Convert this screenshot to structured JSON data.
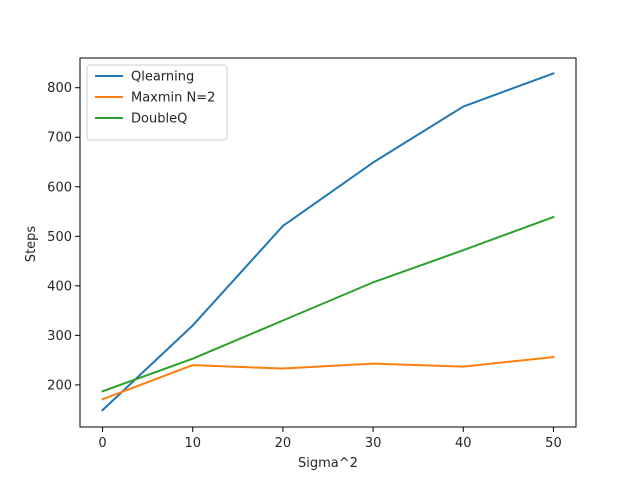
{
  "chart_data": {
    "type": "line",
    "title": "",
    "xlabel": "Sigma^2",
    "ylabel": "Steps",
    "x": [
      0,
      10,
      20,
      30,
      40,
      50
    ],
    "xlim": [
      -2.5,
      52.5
    ],
    "ylim": [
      115,
      860
    ],
    "xticks": [
      0,
      10,
      20,
      30,
      40,
      50
    ],
    "yticks": [
      200,
      300,
      400,
      500,
      600,
      700,
      800
    ],
    "grid": false,
    "legend_position": "upper-left",
    "series": [
      {
        "name": "Qlearning",
        "color": "#1f77b4",
        "values": [
          149,
          320,
          521,
          649,
          762,
          829
        ]
      },
      {
        "name": "Maxmin N=2",
        "color": "#ff7f0e",
        "values": [
          171,
          240,
          233,
          243,
          237,
          256
        ]
      },
      {
        "name": "DoubleQ",
        "color": "#2ca02c",
        "values": [
          187,
          253,
          330,
          407,
          472,
          539
        ]
      }
    ]
  }
}
